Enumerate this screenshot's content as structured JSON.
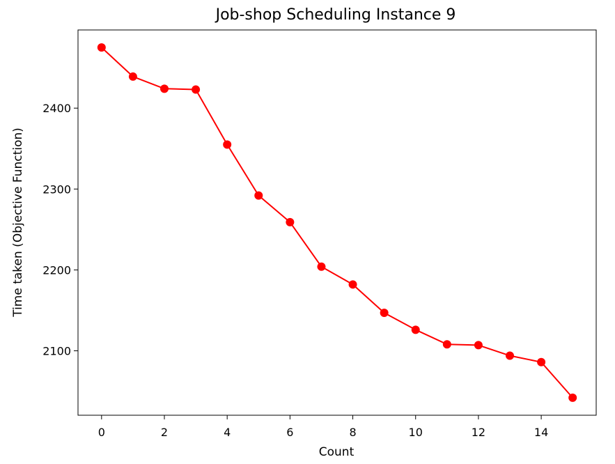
{
  "chart_data": {
    "type": "line",
    "title": "Job-shop Scheduling Instance 9",
    "xlabel": "Count",
    "ylabel": "Time taken (Objective Function)",
    "x": [
      0,
      1,
      2,
      3,
      4,
      5,
      6,
      7,
      8,
      9,
      10,
      11,
      12,
      13,
      14,
      15
    ],
    "series": [
      {
        "values": [
          2475,
          2439,
          2424,
          2423,
          2355,
          2292,
          2259,
          2204,
          2182,
          2147,
          2126,
          2108,
          2107,
          2094,
          2086,
          2042
        ],
        "color": "#ff0000",
        "marker": "circle"
      }
    ],
    "xlim": [
      -0.75,
      15.75
    ],
    "ylim": [
      2020.35,
      2496.65
    ],
    "xticks": [
      0,
      2,
      4,
      6,
      8,
      10,
      12,
      14
    ],
    "xtick_labels": [
      "0",
      "2",
      "4",
      "6",
      "8",
      "10",
      "12",
      "14"
    ],
    "yticks": [
      2100,
      2200,
      2300,
      2400
    ],
    "ytick_labels": [
      "2100",
      "2200",
      "2300",
      "2400"
    ],
    "grid": false,
    "legend": "none"
  }
}
